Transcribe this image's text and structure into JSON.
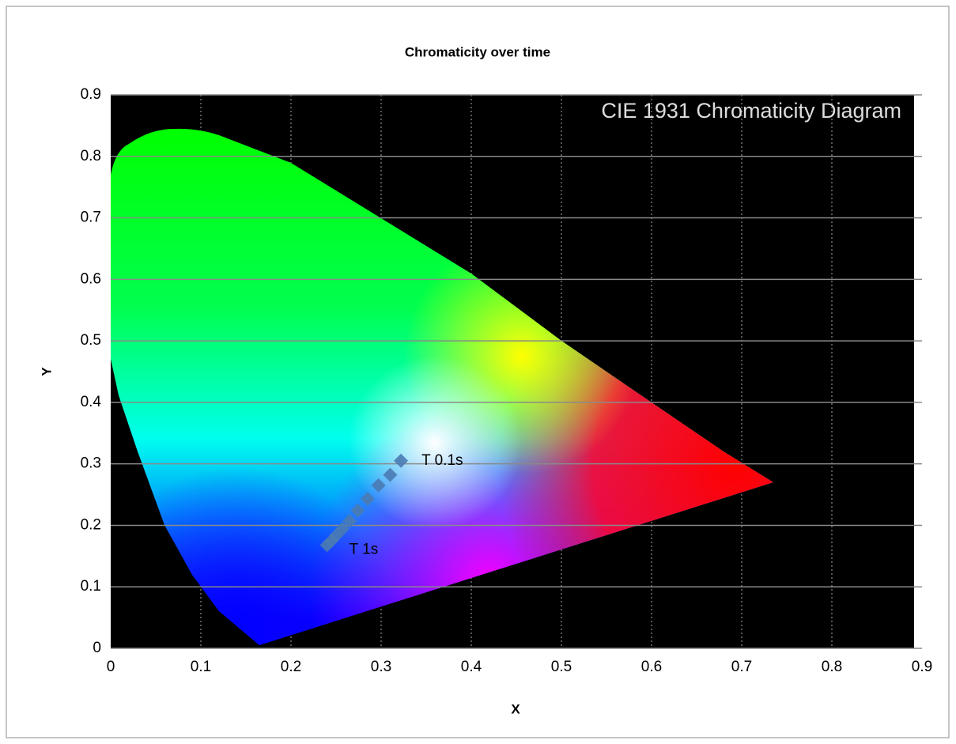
{
  "chart_data": {
    "type": "scatter",
    "title": "Chromaticity  over time",
    "inset_title": "CIE 1931 Chromaticity Diagram",
    "x_label": "X",
    "y_label": "Y",
    "xlim": [
      0,
      0.9
    ],
    "ylim": [
      0,
      0.9
    ],
    "xticks": [
      0,
      0.1,
      0.2,
      0.3,
      0.4,
      0.5,
      0.6,
      0.7,
      0.8,
      0.9
    ],
    "yticks": [
      0,
      0.1,
      0.2,
      0.3,
      0.4,
      0.5,
      0.6,
      0.7,
      0.8,
      0.9
    ],
    "grid": true,
    "series": [
      {
        "color": "#4a7bb3",
        "x": [
          0.322,
          0.31,
          0.297,
          0.285,
          0.274,
          0.265,
          0.257,
          0.25,
          0.245,
          0.24
        ],
        "values": [
          0.305,
          0.282,
          0.265,
          0.243,
          0.224,
          0.207,
          0.194,
          0.183,
          0.175,
          0.168
        ]
      }
    ],
    "annotations": [
      "T  0.1s",
      "T 1s"
    ]
  }
}
